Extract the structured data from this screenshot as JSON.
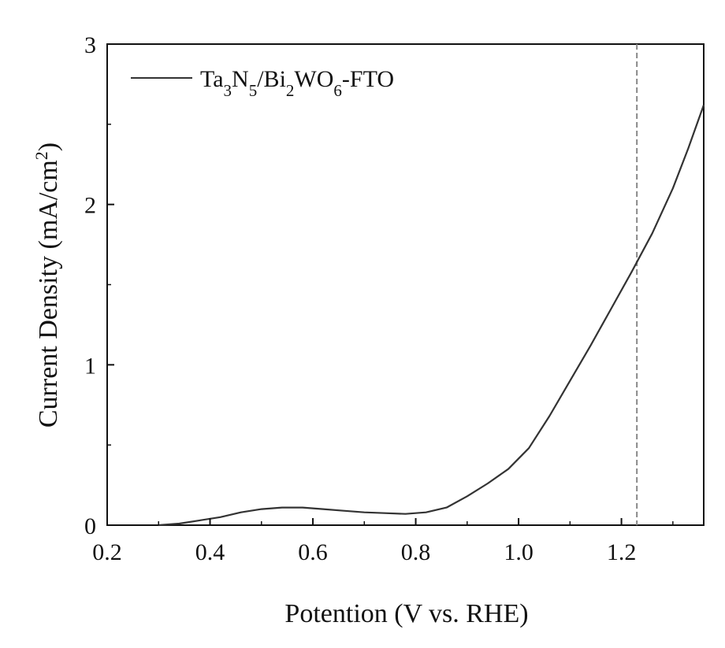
{
  "chart_data": {
    "type": "line",
    "xlabel": "Potention (V vs. RHE)",
    "ylabel": "Current Density (mA/cm²)",
    "ylabel_parts": {
      "base": "Current Density (mA/cm",
      "sup": "2",
      "tail": ")"
    },
    "xlim": [
      0.2,
      1.36
    ],
    "ylim": [
      0,
      3
    ],
    "x_ticks": [
      0.2,
      0.4,
      0.6,
      0.8,
      1.0,
      1.2
    ],
    "x_tick_labels": [
      "0.2",
      "0.4",
      "0.6",
      "0.8",
      "1.0",
      "1.2"
    ],
    "y_ticks": [
      0,
      1,
      2,
      3
    ],
    "y_tick_labels": [
      "0",
      "1",
      "2",
      "3"
    ],
    "reference_line_x": 1.23,
    "legend_position": "top-left",
    "series": [
      {
        "name": "Ta3N5/Bi2WO6-FTO",
        "color": "#333333",
        "x": [
          0.3,
          0.34,
          0.38,
          0.42,
          0.46,
          0.5,
          0.54,
          0.58,
          0.62,
          0.66,
          0.7,
          0.74,
          0.78,
          0.82,
          0.86,
          0.9,
          0.94,
          0.98,
          1.02,
          1.06,
          1.1,
          1.14,
          1.18,
          1.22,
          1.26,
          1.3,
          1.33,
          1.36
        ],
        "y": [
          0.0,
          0.01,
          0.03,
          0.05,
          0.08,
          0.1,
          0.11,
          0.11,
          0.1,
          0.09,
          0.08,
          0.075,
          0.07,
          0.08,
          0.11,
          0.18,
          0.26,
          0.35,
          0.48,
          0.68,
          0.9,
          1.12,
          1.35,
          1.58,
          1.82,
          2.1,
          2.35,
          2.62
        ]
      }
    ]
  },
  "legend": {
    "parts": [
      {
        "text": "Ta",
        "sub": false
      },
      {
        "text": "3",
        "sub": true
      },
      {
        "text": "N",
        "sub": false
      },
      {
        "text": "5",
        "sub": true
      },
      {
        "text": "/Bi",
        "sub": false
      },
      {
        "text": "2",
        "sub": true
      },
      {
        "text": "WO",
        "sub": false
      },
      {
        "text": "6",
        "sub": true
      },
      {
        "text": "-FTO",
        "sub": false
      }
    ]
  }
}
